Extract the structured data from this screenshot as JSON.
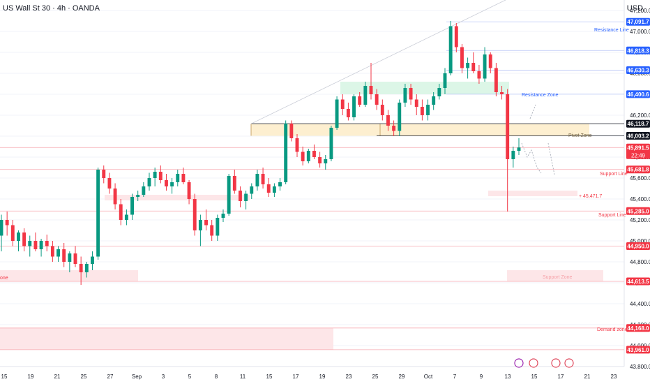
{
  "header": {
    "symbol": "US Wall St 30 · 4h · OANDA",
    "currency": "USD"
  },
  "colors": {
    "up": "#089981",
    "down": "#f23645",
    "grid": "#f0f3fa",
    "axis_text": "#131722",
    "blue_tag": "#2962ff",
    "red_tag": "#f23645",
    "black_tag": "#131722",
    "resistance_zone": "#d6f5e3",
    "pivot_zone": "#fdecc8",
    "support_zone": "#fde2e4"
  },
  "chart_data": {
    "type": "candlestick",
    "title": "US Wall St 30 · 4h · OANDA",
    "ylim": [
      43800,
      47300
    ],
    "y_ticks": [
      43800,
      44000,
      44200,
      44400,
      44600,
      44800,
      45000,
      45200,
      45400,
      45600,
      45800,
      46000,
      46200,
      46400,
      46600,
      46800,
      47000,
      47200
    ],
    "x_tick_labels": [
      "15",
      "19",
      "21",
      "25",
      "27",
      "Sep",
      "3",
      "5",
      "8",
      "11",
      "15",
      "17",
      "19",
      "23",
      "25",
      "29",
      "Oct",
      "7",
      "9",
      "13",
      "15",
      "17",
      "21",
      "23"
    ],
    "price_tags": [
      {
        "value": "47,091.7",
        "style": "blue"
      },
      {
        "value": "46,818.3",
        "style": "blue"
      },
      {
        "value": "46,630.3",
        "style": "blue"
      },
      {
        "value": "46,400.6",
        "style": "blue"
      },
      {
        "value": "46,118.7",
        "style": "black"
      },
      {
        "value": "46,003.2",
        "style": "black"
      },
      {
        "value": "45,891.5",
        "style": "red",
        "sub": "22:49"
      },
      {
        "value": "45,681.8",
        "style": "red"
      },
      {
        "value": "45,285.0",
        "style": "red"
      },
      {
        "value": "44,950.0",
        "style": "red"
      },
      {
        "value": "44,613.5",
        "style": "red"
      },
      {
        "value": "44,168.0",
        "style": "red"
      },
      {
        "value": "43,961.0",
        "style": "red"
      }
    ],
    "zones": [
      {
        "name": "Resistance Zone",
        "from": 46400,
        "to": 46520
      },
      {
        "name": "Pivot Zone",
        "from": 46003,
        "to": 46118
      },
      {
        "name": "Support Zone",
        "from": 44613,
        "to": 44720
      },
      {
        "name": "Demand zone",
        "from": 43961,
        "to": 44168
      }
    ],
    "level_labels": [
      {
        "text": "Resistance Line",
        "value": 47091.7
      },
      {
        "text": "Support Line",
        "value": 45681.8
      },
      {
        "text": "Support Line",
        "value": 45285.0
      },
      {
        "text": "45,471.7",
        "value": 45471.7
      }
    ],
    "zone_left_label": "one",
    "candles": [
      [
        45050,
        45250,
        44900,
        45200
      ],
      [
        45200,
        45280,
        45050,
        45150
      ],
      [
        45150,
        45200,
        44950,
        45000
      ],
      [
        45000,
        45100,
        44900,
        45080
      ],
      [
        45080,
        45120,
        44900,
        44950
      ],
      [
        44950,
        45050,
        44850,
        45000
      ],
      [
        45000,
        45080,
        44900,
        44920
      ],
      [
        44920,
        45020,
        44850,
        45000
      ],
      [
        45000,
        45060,
        44900,
        44950
      ],
      [
        44950,
        45000,
        44800,
        44850
      ],
      [
        44850,
        44950,
        44800,
        44920
      ],
      [
        44920,
        44980,
        44750,
        44800
      ],
      [
        44800,
        44900,
        44700,
        44880
      ],
      [
        44880,
        44950,
        44750,
        44780
      ],
      [
        44780,
        44850,
        44580,
        44700
      ],
      [
        44700,
        44800,
        44650,
        44780
      ],
      [
        44780,
        44900,
        44720,
        44850
      ],
      [
        44850,
        45700,
        44820,
        45680
      ],
      [
        45680,
        45720,
        45550,
        45600
      ],
      [
        45600,
        45650,
        45450,
        45500
      ],
      [
        45500,
        45550,
        45300,
        45350
      ],
      [
        45350,
        45400,
        45150,
        45200
      ],
      [
        45200,
        45300,
        45150,
        45250
      ],
      [
        45250,
        45450,
        45200,
        45420
      ],
      [
        45420,
        45480,
        45380,
        45440
      ],
      [
        45440,
        45560,
        45420,
        45520
      ],
      [
        45520,
        45650,
        45480,
        45600
      ],
      [
        45600,
        45700,
        45520,
        45660
      ],
      [
        45660,
        45720,
        45550,
        45580
      ],
      [
        45580,
        45640,
        45480,
        45520
      ],
      [
        45520,
        45600,
        45450,
        45560
      ],
      [
        45560,
        45680,
        45520,
        45640
      ],
      [
        45640,
        45700,
        45540,
        45560
      ],
      [
        45560,
        45580,
        45350,
        45400
      ],
      [
        45400,
        45450,
        45050,
        45100
      ],
      [
        45100,
        45250,
        44950,
        45200
      ],
      [
        45200,
        45300,
        45100,
        45150
      ],
      [
        45150,
        45200,
        45000,
        45050
      ],
      [
        45050,
        45250,
        45000,
        45220
      ],
      [
        45220,
        45300,
        45180,
        45260
      ],
      [
        45260,
        45640,
        45240,
        45620
      ],
      [
        45620,
        45680,
        45450,
        45480
      ],
      [
        45480,
        45520,
        45320,
        45380
      ],
      [
        45380,
        45480,
        45300,
        45450
      ],
      [
        45450,
        45550,
        45400,
        45520
      ],
      [
        45520,
        45680,
        45480,
        45640
      ],
      [
        45640,
        45700,
        45500,
        45540
      ],
      [
        45540,
        45600,
        45420,
        45460
      ],
      [
        45460,
        45550,
        45420,
        45520
      ],
      [
        45520,
        45600,
        45480,
        45560
      ],
      [
        45560,
        46150,
        45540,
        46120
      ],
      [
        46120,
        46150,
        45950,
        45980
      ],
      [
        45980,
        46020,
        45800,
        45850
      ],
      [
        45850,
        45900,
        45720,
        45760
      ],
      [
        45760,
        45880,
        45740,
        45860
      ],
      [
        45860,
        45920,
        45780,
        45800
      ],
      [
        45800,
        45850,
        45700,
        45740
      ],
      [
        45740,
        45820,
        45680,
        45780
      ],
      [
        45780,
        46100,
        45760,
        46080
      ],
      [
        46080,
        46380,
        46060,
        46350
      ],
      [
        46350,
        46400,
        46200,
        46260
      ],
      [
        46260,
        46320,
        46150,
        46180
      ],
      [
        46180,
        46400,
        46150,
        46380
      ],
      [
        46380,
        46420,
        46280,
        46300
      ],
      [
        46300,
        46520,
        46280,
        46480
      ],
      [
        46480,
        46700,
        46350,
        46400
      ],
      [
        46400,
        46450,
        46250,
        46300
      ],
      [
        46300,
        46350,
        46150,
        46200
      ],
      [
        46200,
        46250,
        46050,
        46100
      ],
      [
        46100,
        46150,
        46000,
        46050
      ],
      [
        46050,
        46350,
        46000,
        46320
      ],
      [
        46320,
        46500,
        46280,
        46460
      ],
      [
        46460,
        46500,
        46300,
        46350
      ],
      [
        46350,
        46400,
        46200,
        46280
      ],
      [
        46280,
        46350,
        46150,
        46200
      ],
      [
        46200,
        46350,
        46150,
        46300
      ],
      [
        46300,
        46420,
        46250,
        46380
      ],
      [
        46380,
        46500,
        46350,
        46460
      ],
      [
        46460,
        46650,
        46400,
        46600
      ],
      [
        46600,
        47100,
        46580,
        47050
      ],
      [
        47050,
        47080,
        46800,
        46850
      ],
      [
        46850,
        46880,
        46600,
        46650
      ],
      [
        46650,
        46750,
        46550,
        46700
      ],
      [
        46700,
        46800,
        46600,
        46620
      ],
      [
        46620,
        46680,
        46500,
        46550
      ],
      [
        46550,
        46850,
        46520,
        46780
      ],
      [
        46780,
        46800,
        46600,
        46650
      ],
      [
        46650,
        46700,
        46380,
        46420
      ],
      [
        46420,
        46480,
        46350,
        46400
      ],
      [
        46400,
        46450,
        45280,
        45780
      ],
      [
        45780,
        45900,
        45700,
        45860
      ],
      [
        45860,
        45980,
        45820,
        45891.5
      ]
    ]
  }
}
